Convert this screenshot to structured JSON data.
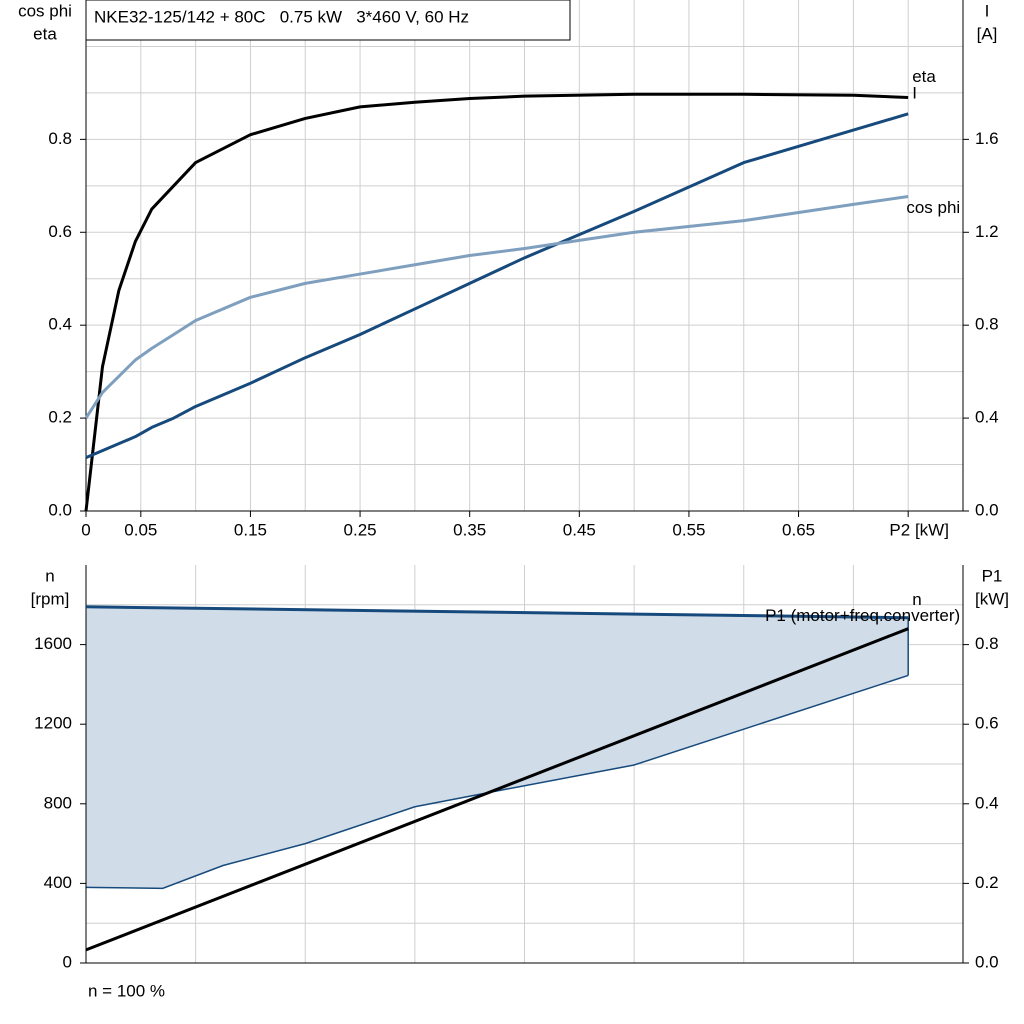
{
  "chart_data": [
    {
      "type": "line",
      "title": "NKE32-125/142 + 80C   0.75 kW   3*460 V, 60 Hz",
      "ylabel": [
        "cos phi",
        "eta"
      ],
      "y2label": [
        "I",
        "[A]"
      ],
      "x": [
        0,
        0.015,
        0.03,
        0.045,
        0.06,
        0.08,
        0.1,
        0.15,
        0.2,
        0.25,
        0.3,
        0.35,
        0.4,
        0.5,
        0.6,
        0.7,
        0.75
      ],
      "series": [
        {
          "name": "eta",
          "color": "#000000",
          "values": [
            0,
            0.31,
            0.475,
            0.58,
            0.65,
            0.7,
            0.75,
            0.81,
            0.845,
            0.87,
            0.88,
            0.888,
            0.893,
            0.897,
            0.897,
            0.895,
            0.89
          ]
        },
        {
          "name": "I",
          "color": "#174a7c",
          "axis": "y2",
          "values": [
            0.23,
            0.26,
            0.29,
            0.32,
            0.36,
            0.4,
            0.45,
            0.55,
            0.66,
            0.76,
            0.87,
            0.98,
            1.09,
            1.29,
            1.5,
            1.64,
            1.71
          ]
        },
        {
          "name": "cos phi",
          "color": "#7f9fbf",
          "values": [
            0.2,
            0.255,
            0.29,
            0.325,
            0.35,
            0.38,
            0.41,
            0.46,
            0.49,
            0.51,
            0.53,
            0.55,
            0.565,
            0.6,
            0.625,
            0.66,
            0.677
          ]
        }
      ],
      "xlim": [
        0,
        0.8
      ],
      "xticks": [
        0,
        0.05,
        0.15,
        0.25,
        0.35,
        0.45,
        0.55,
        0.65,
        {
          "value": 0.75,
          "label": "P2 [kW]"
        }
      ],
      "xgrid": [
        0.1,
        0.2,
        0.3,
        0.4,
        0.5,
        0.6,
        0.7
      ],
      "ylim": [
        0,
        1.1
      ],
      "yticks": [
        {
          "value": 0,
          "label": "0.0"
        },
        0.2,
        0.4,
        0.6,
        0.8
      ],
      "ygrid": [
        0.1,
        0.3,
        0.5,
        0.7,
        0.9,
        1.0
      ],
      "y2lim": [
        0,
        2.2
      ],
      "y2ticks": [
        {
          "value": 0,
          "label": "0.0"
        },
        0.4,
        0.8,
        1.2,
        1.6
      ],
      "grid": true
    },
    {
      "type": "line",
      "ylabel": [
        "n",
        "[rpm]"
      ],
      "y2label": [
        "P1",
        "[kW]"
      ],
      "note": "n = 100 %",
      "series": [
        {
          "name": "n",
          "color": "#174a7c",
          "x": [
            0,
            0.75
          ],
          "values": [
            1790,
            1735
          ]
        },
        {
          "name": "P1 (motor+freq.converter)",
          "color": "#000000",
          "axis": "y2",
          "x": [
            0,
            0.75
          ],
          "values": [
            0.033,
            0.84
          ]
        }
      ],
      "band": {
        "color": "#d0dce8",
        "x": [
          0,
          0.07,
          0.125,
          0.2,
          0.3,
          0.38,
          0.5,
          0.75
        ],
        "values": [
          380,
          375,
          490,
          600,
          785,
          870,
          995,
          1445
        ]
      },
      "xlim": [
        0,
        0.8
      ],
      "xgrid": [
        0.1,
        0.2,
        0.3,
        0.4,
        0.5,
        0.6,
        0.7
      ],
      "ylim": [
        0,
        2000
      ],
      "yticks": [
        0,
        400,
        800,
        1200,
        1600
      ],
      "ygrid": [
        200,
        600,
        1000,
        1400,
        1800
      ],
      "y2lim": [
        0,
        1.0
      ],
      "y2ticks": [
        {
          "value": 0,
          "label": "0.0"
        },
        0.2,
        0.4,
        0.6,
        0.8
      ],
      "grid": true
    }
  ]
}
